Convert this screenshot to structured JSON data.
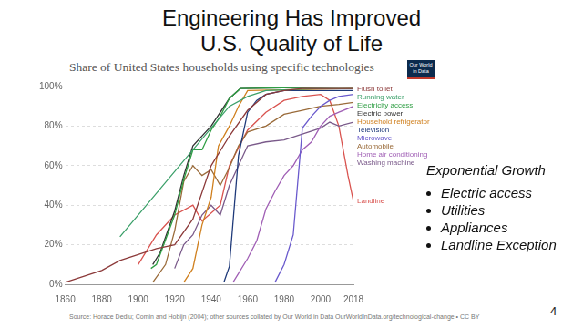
{
  "slide": {
    "title": "Engineering Has Improved U.S. Quality of Life",
    "side_heading": "Exponential Growth",
    "bullets": [
      "Electric access",
      "Utilities",
      "Appliances",
      "Landline Exception"
    ],
    "page_number": "4"
  },
  "chart_data": {
    "type": "line",
    "title": "Share of United States households using specific technologies",
    "logo": "Our World in Data",
    "source": "Source: Horace Dediu; Comin and Hobijn (2004); other sources collated by Our World in Data   OurWorldInData.org/technological-change • CC BY",
    "xlim": [
      1860,
      2018
    ],
    "xticks": [
      1860,
      1880,
      1900,
      1920,
      1940,
      1960,
      1980,
      2000,
      2018
    ],
    "ylim": [
      0,
      100
    ],
    "yticks": [
      {
        "value": 0,
        "label": "0%"
      },
      {
        "value": 20,
        "label": "20%"
      },
      {
        "value": 40,
        "label": "40%"
      },
      {
        "value": 60,
        "label": "60%"
      },
      {
        "value": 80,
        "label": "80%"
      },
      {
        "value": 100,
        "label": "100%"
      }
    ],
    "grid": true,
    "series": [
      {
        "name": "Flush toilet",
        "color": "#8c3a3a",
        "x": [
          1860,
          1880,
          1890,
          1900,
          1910,
          1920,
          1930,
          1940,
          1950,
          1960,
          1970,
          1980,
          1990,
          2000,
          2010,
          2018
        ],
        "values": [
          1,
          7,
          12,
          15,
          18,
          20,
          33,
          60,
          75,
          88,
          96,
          98,
          99,
          99,
          99,
          99
        ]
      },
      {
        "name": "Running water",
        "color": "#3ca06a",
        "x": [
          1890,
          1950,
          1960,
          1970,
          2000,
          2018
        ],
        "values": [
          24,
          90,
          95,
          98,
          99,
          99
        ]
      },
      {
        "name": "Electricity access",
        "color": "#2f9e44",
        "x": [
          1907,
          1910,
          1920,
          1925,
          1930,
          1935,
          1940,
          1945,
          1950,
          1956,
          2018
        ],
        "values": [
          8,
          10,
          35,
          53,
          68,
          68,
          78,
          85,
          94,
          99,
          100
        ]
      },
      {
        "name": "Electric power",
        "color": "#333333",
        "x": [
          1908,
          1912,
          1920,
          1925,
          1930,
          1940,
          1950,
          1956,
          2018
        ],
        "values": [
          10,
          16,
          37,
          55,
          70,
          80,
          94,
          99,
          100
        ]
      },
      {
        "name": "Household refrigerator",
        "color": "#d0801f",
        "x": [
          1925,
          1930,
          1935,
          1940,
          1944,
          1950,
          1955,
          1960,
          2018
        ],
        "values": [
          1,
          8,
          30,
          44,
          70,
          80,
          90,
          98,
          99
        ]
      },
      {
        "name": "Television",
        "color": "#1f3a7a",
        "x": [
          1947,
          1950,
          1955,
          1960,
          1965,
          1970,
          1980,
          2018
        ],
        "values": [
          1,
          9,
          65,
          87,
          93,
          96,
          98,
          98
        ]
      },
      {
        "name": "Microwave",
        "color": "#6a5acd",
        "x": [
          1975,
          1980,
          1985,
          1990,
          1995,
          2000,
          2005,
          2010,
          2018
        ],
        "values": [
          1,
          10,
          25,
          79,
          85,
          90,
          93,
          95,
          96
        ]
      },
      {
        "name": "Automobile",
        "color": "#9a6b3a",
        "x": [
          1908,
          1915,
          1920,
          1925,
          1930,
          1935,
          1940,
          1945,
          1950,
          1955,
          1960,
          1970,
          1980,
          1990,
          2000,
          2010,
          2018
        ],
        "values": [
          1,
          10,
          27,
          52,
          60,
          55,
          58,
          50,
          59,
          70,
          77,
          80,
          86,
          88,
          90,
          91,
          92
        ]
      },
      {
        "name": "Home air conditioning",
        "color": "#a05fb5",
        "x": [
          1952,
          1960,
          1965,
          1970,
          1975,
          1980,
          1985,
          1990,
          1995,
          2000,
          2005,
          2010,
          2018
        ],
        "values": [
          1,
          13,
          22,
          38,
          47,
          55,
          60,
          68,
          72,
          80,
          85,
          87,
          90
        ]
      },
      {
        "name": "Washing machine",
        "color": "#7a5a8a",
        "x": [
          1920,
          1925,
          1930,
          1935,
          1940,
          1945,
          1950,
          1955,
          1960,
          1970,
          1980,
          1990,
          2000,
          2005,
          2010,
          2018
        ],
        "values": [
          8,
          20,
          25,
          35,
          40,
          35,
          50,
          60,
          70,
          72,
          73,
          76,
          79,
          82,
          80,
          82
        ]
      },
      {
        "name": "Landline",
        "color": "#d9534f",
        "x": [
          1900,
          1910,
          1920,
          1930,
          1935,
          1945,
          1950,
          1960,
          1970,
          1980,
          1990,
          2000,
          2005,
          2010,
          2015,
          2018
        ],
        "values": [
          10,
          25,
          35,
          40,
          32,
          40,
          60,
          78,
          87,
          93,
          95,
          96,
          93,
          80,
          55,
          42
        ]
      }
    ]
  }
}
